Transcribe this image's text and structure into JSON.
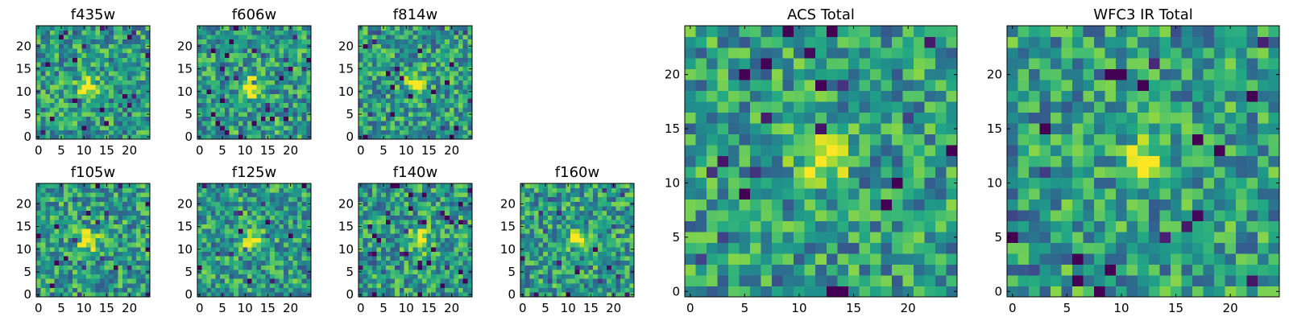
{
  "figure": {
    "description_title": "Multi-band image cutouts"
  },
  "colors": {
    "viridis_low": "#440154",
    "viridis_mid": "#21918c",
    "viridis_high": "#fde725",
    "axis": "#000000",
    "background": "#ffffff"
  },
  "chart_data": [
    {
      "type": "heatmap",
      "title": "f435w",
      "xlim": [
        0,
        24
      ],
      "ylim": [
        0,
        24
      ],
      "xticks": [
        0,
        5,
        10,
        15,
        20
      ],
      "yticks": [
        0,
        5,
        10,
        15,
        20
      ],
      "xlabel": "",
      "ylabel": "",
      "colormap": "viridis",
      "size": 25,
      "source": {
        "x": 11,
        "y": 11
      },
      "seed": 11
    },
    {
      "type": "heatmap",
      "title": "f606w",
      "xlim": [
        0,
        24
      ],
      "ylim": [
        0,
        24
      ],
      "xticks": [
        0,
        5,
        10,
        15,
        20
      ],
      "yticks": [
        0,
        5,
        10,
        15,
        20
      ],
      "xlabel": "",
      "ylabel": "",
      "colormap": "viridis",
      "size": 25,
      "source": {
        "x": 11,
        "y": 11
      },
      "seed": 23
    },
    {
      "type": "heatmap",
      "title": "f814w",
      "xlim": [
        0,
        24
      ],
      "ylim": [
        0,
        24
      ],
      "xticks": [
        0,
        5,
        10,
        15,
        20
      ],
      "yticks": [
        0,
        5,
        10,
        15,
        20
      ],
      "xlabel": "",
      "ylabel": "",
      "colormap": "viridis",
      "size": 25,
      "source": {
        "x": 12,
        "y": 12
      },
      "seed": 37
    },
    {
      "type": "heatmap",
      "title": "f105w",
      "xlim": [
        0,
        24
      ],
      "ylim": [
        0,
        24
      ],
      "xticks": [
        0,
        5,
        10,
        15,
        20
      ],
      "yticks": [
        0,
        5,
        10,
        15,
        20
      ],
      "xlabel": "",
      "ylabel": "",
      "colormap": "viridis",
      "size": 25,
      "source": {
        "x": 11,
        "y": 12
      },
      "seed": 41
    },
    {
      "type": "heatmap",
      "title": "f125w",
      "xlim": [
        0,
        24
      ],
      "ylim": [
        0,
        24
      ],
      "xticks": [
        0,
        5,
        10,
        15,
        20
      ],
      "yticks": [
        0,
        5,
        10,
        15,
        20
      ],
      "xlabel": "",
      "ylabel": "",
      "colormap": "viridis",
      "size": 25,
      "source": {
        "x": 12,
        "y": 12
      },
      "seed": 53
    },
    {
      "type": "heatmap",
      "title": "f140w",
      "xlim": [
        0,
        24
      ],
      "ylim": [
        0,
        24
      ],
      "xticks": [
        0,
        5,
        10,
        15,
        20
      ],
      "yticks": [
        0,
        5,
        10,
        15,
        20
      ],
      "xlabel": "",
      "ylabel": "",
      "colormap": "viridis",
      "size": 25,
      "source": {
        "x": 13,
        "y": 12
      },
      "seed": 67
    },
    {
      "type": "heatmap",
      "title": "f160w",
      "xlim": [
        0,
        24
      ],
      "ylim": [
        0,
        24
      ],
      "xticks": [
        0,
        5,
        10,
        15,
        20
      ],
      "yticks": [
        0,
        5,
        10,
        15,
        20
      ],
      "xlabel": "",
      "ylabel": "",
      "colormap": "viridis",
      "size": 25,
      "source": {
        "x": 12,
        "y": 12
      },
      "seed": 79
    },
    {
      "type": "heatmap",
      "title": "ACS Total",
      "xlim": [
        0,
        24
      ],
      "ylim": [
        0,
        24
      ],
      "xticks": [
        0,
        5,
        10,
        15,
        20
      ],
      "yticks": [
        0,
        5,
        10,
        15,
        20
      ],
      "xlabel": "",
      "ylabel": "",
      "colormap": "viridis",
      "size": 25,
      "source": {
        "x": 12,
        "y": 12
      },
      "seed": 97
    },
    {
      "type": "heatmap",
      "title": "WFC3 IR Total",
      "xlim": [
        0,
        24
      ],
      "ylim": [
        0,
        24
      ],
      "xticks": [
        0,
        5,
        10,
        15,
        20
      ],
      "yticks": [
        0,
        5,
        10,
        15,
        20
      ],
      "xlabel": "",
      "ylabel": "",
      "colormap": "viridis",
      "size": 25,
      "source": {
        "x": 12,
        "y": 12
      },
      "seed": 113
    }
  ]
}
